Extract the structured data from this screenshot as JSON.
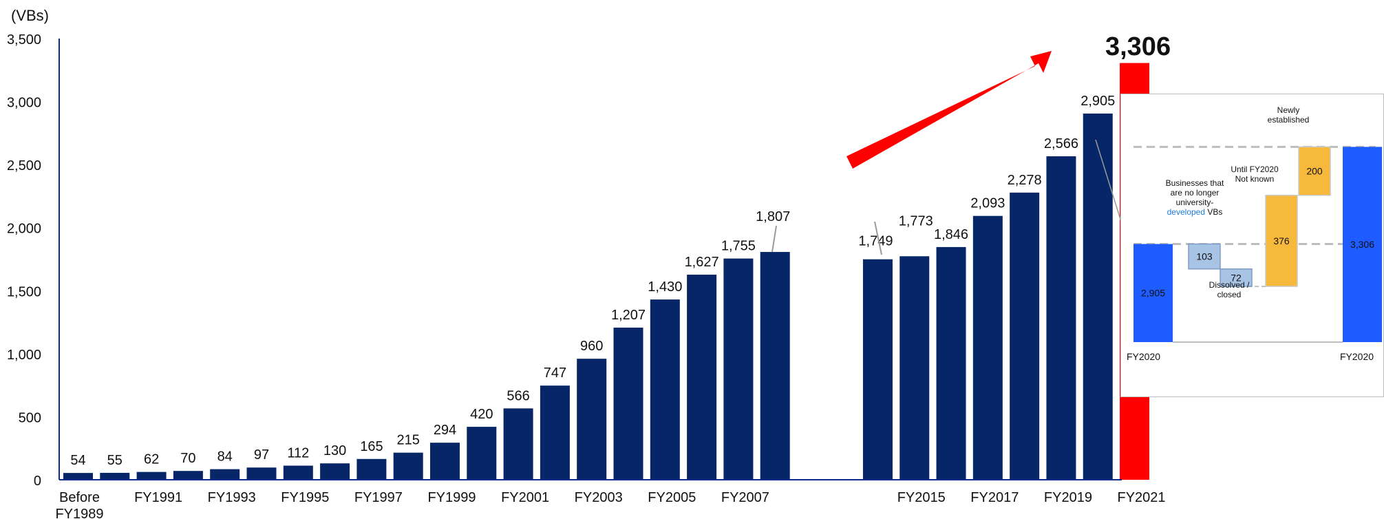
{
  "chart_data": {
    "type": "bar",
    "unit_label": "(VBs)",
    "y_ticks": [
      "0",
      "500",
      "1,000",
      "1,500",
      "2,000",
      "2,500",
      "3,000",
      "3,500"
    ],
    "ylim": [
      0,
      3500
    ],
    "colors": {
      "bar": "#062668",
      "highlight": "#ff0000",
      "axis": "#0b2a8a"
    },
    "bars": [
      {
        "label": "54",
        "value": 54
      },
      {
        "label": "55",
        "value": 55
      },
      {
        "label": "62",
        "value": 62
      },
      {
        "label": "70",
        "value": 70
      },
      {
        "label": "84",
        "value": 84
      },
      {
        "label": "97",
        "value": 97
      },
      {
        "label": "112",
        "value": 112
      },
      {
        "label": "130",
        "value": 130
      },
      {
        "label": "165",
        "value": 165
      },
      {
        "label": "215",
        "value": 215
      },
      {
        "label": "294",
        "value": 294
      },
      {
        "label": "420",
        "value": 420
      },
      {
        "label": "566",
        "value": 566
      },
      {
        "label": "747",
        "value": 747
      },
      {
        "label": "960",
        "value": 960
      },
      {
        "label": "1,207",
        "value": 1207
      },
      {
        "label": "1,430",
        "value": 1430
      },
      {
        "label": "1,627",
        "value": 1627
      },
      {
        "label": "1,755",
        "value": 1755
      },
      {
        "label": "1,807",
        "value": 1807
      },
      {
        "label": "1,749",
        "value": 1749
      },
      {
        "label": "1,773",
        "value": 1773
      },
      {
        "label": "1,846",
        "value": 1846
      },
      {
        "label": "2,093",
        "value": 2093
      },
      {
        "label": "2,278",
        "value": 2278
      },
      {
        "label": "2,566",
        "value": 2566
      },
      {
        "label": "2,905",
        "value": 2905
      },
      {
        "label": "3,306",
        "value": 3306,
        "highlight": true
      }
    ],
    "x_labels": [
      {
        "bar": 0,
        "lines": [
          "Before",
          "FY1989"
        ]
      },
      {
        "bar": 2,
        "lines": [
          "FY1991"
        ]
      },
      {
        "bar": 4,
        "lines": [
          "FY1993"
        ]
      },
      {
        "bar": 6,
        "lines": [
          "FY1995"
        ]
      },
      {
        "bar": 8,
        "lines": [
          "FY1997"
        ]
      },
      {
        "bar": 10,
        "lines": [
          "FY1999"
        ]
      },
      {
        "bar": 12,
        "lines": [
          "FY2001"
        ]
      },
      {
        "bar": 14,
        "lines": [
          "FY2003"
        ]
      },
      {
        "bar": 16,
        "lines": [
          "FY2005"
        ]
      },
      {
        "bar": 18,
        "lines": [
          "FY2007"
        ]
      },
      {
        "bar": 21,
        "lines": [
          "FY2015"
        ]
      },
      {
        "bar": 23,
        "lines": [
          "FY2017"
        ]
      },
      {
        "bar": 25,
        "lines": [
          "FY2019"
        ]
      },
      {
        "bar": 27,
        "lines": [
          "FY2021"
        ]
      }
    ],
    "inset": {
      "type": "waterfall",
      "colors": {
        "total": "#1f5cff",
        "decrease": "#a8c4e4",
        "increase": "#f7b93b",
        "highlight_text": "#1f7bd8"
      },
      "steps": [
        {
          "label": "2,905",
          "value": 2905,
          "kind": "total"
        },
        {
          "label": "103",
          "value": 103,
          "kind": "decrease"
        },
        {
          "label": "72",
          "value": 72,
          "kind": "decrease"
        },
        {
          "label": "376",
          "value": 376,
          "kind": "increase"
        },
        {
          "label": "200",
          "value": 200,
          "kind": "increase"
        },
        {
          "label": "3,306",
          "value": 3306,
          "kind": "total"
        }
      ],
      "annotations": {
        "no_longer_l1": "Businesses that",
        "no_longer_l2": "are no longer",
        "no_longer_l3": "university-",
        "no_longer_l4_a": "developed",
        "no_longer_l4_b": " VBs",
        "dissolved_l1": "Dissolved /",
        "dissolved_l2": "closed",
        "not_known_l1": "Until FY2020",
        "not_known_l2": "Not known",
        "new_l1": "Newly",
        "new_l2": "established"
      },
      "x_labels": [
        "FY2020",
        "FY2020"
      ]
    }
  }
}
